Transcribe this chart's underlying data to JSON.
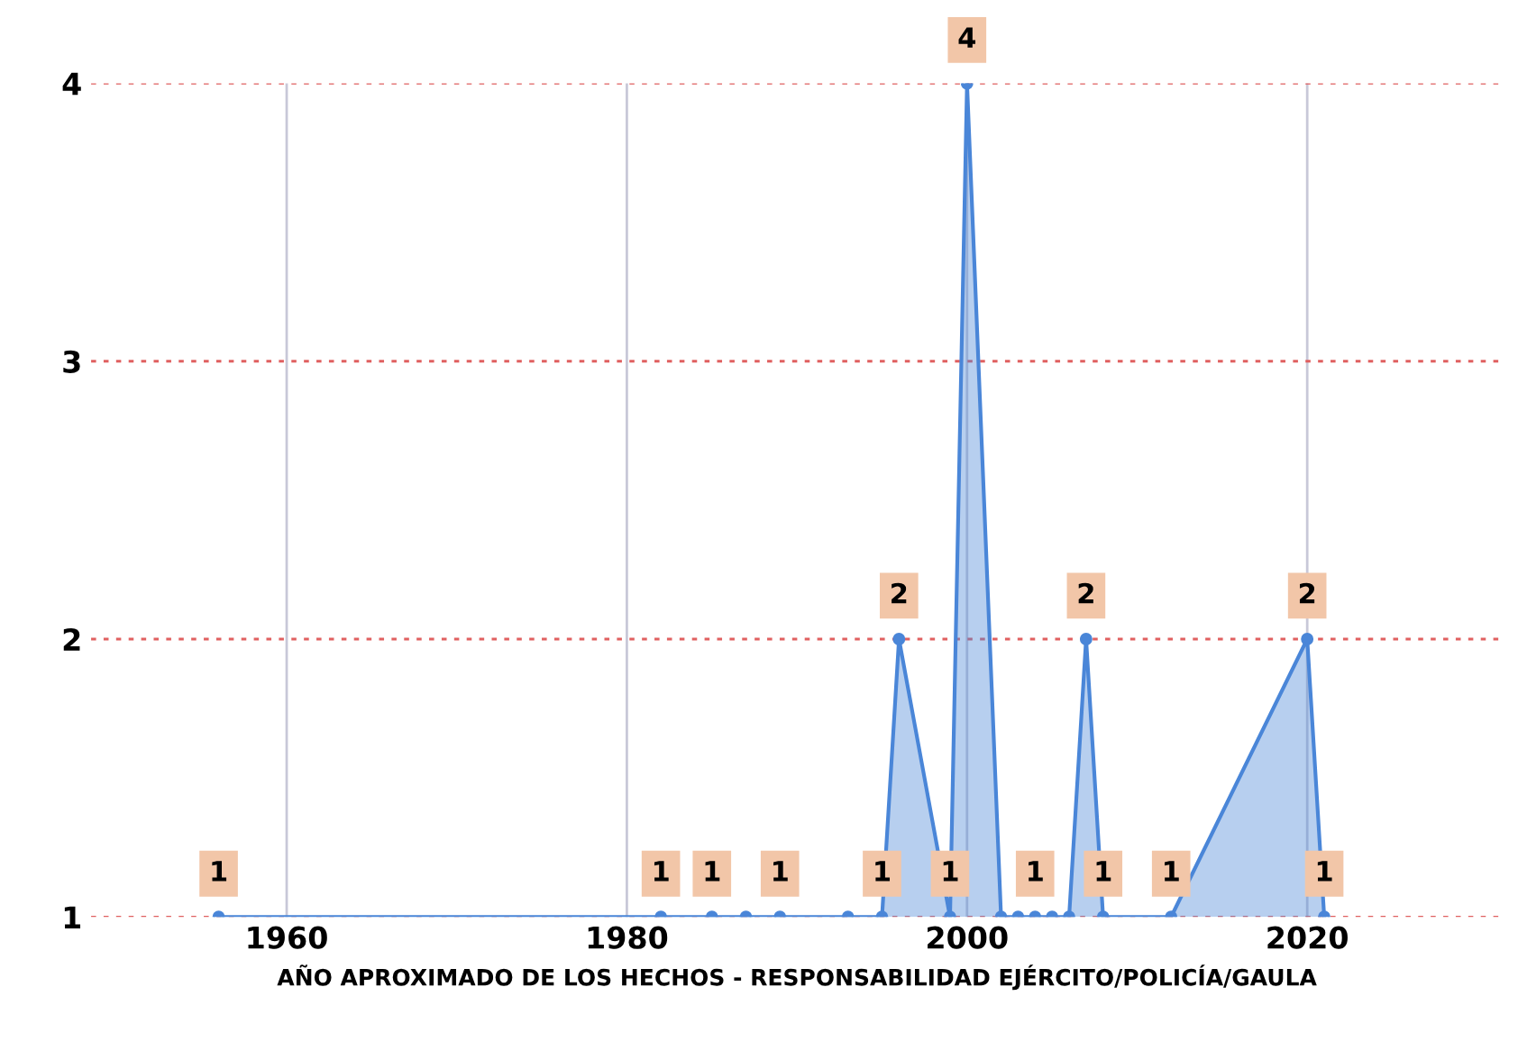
{
  "chart_data": {
    "type": "area",
    "xlabel": "AÑO APROXIMADO DE LOS HECHOS - RESPONSABILIDAD EJÉRCITO/POLICÍA/GAULA",
    "x": [
      1956,
      1982,
      1985,
      1987,
      1989,
      1993,
      1995,
      1996,
      1999,
      2000,
      2002,
      2003,
      2004,
      2005,
      2006,
      2007,
      2008,
      2012,
      2020,
      2021
    ],
    "series": [
      {
        "color": "#4a86d8",
        "values": [
          1,
          1,
          1,
          1,
          1,
          1,
          1,
          2,
          1,
          4,
          1,
          1,
          1,
          1,
          1,
          2,
          1,
          1,
          2,
          1
        ],
        "value_labels": [
          "1",
          "1",
          "1",
          null,
          "1",
          null,
          "1",
          "2",
          "1",
          "4",
          null,
          null,
          "1",
          null,
          null,
          "2",
          "1",
          "1",
          "2",
          "1"
        ]
      }
    ],
    "xlim": [
      1948.5,
      2031.5
    ],
    "xticks": [
      1960,
      1980,
      2000,
      2020
    ],
    "ylim": [
      1,
      4
    ],
    "yticks": [
      1,
      2,
      3,
      4
    ],
    "grid": true,
    "marker": "circle",
    "legend": false
  }
}
